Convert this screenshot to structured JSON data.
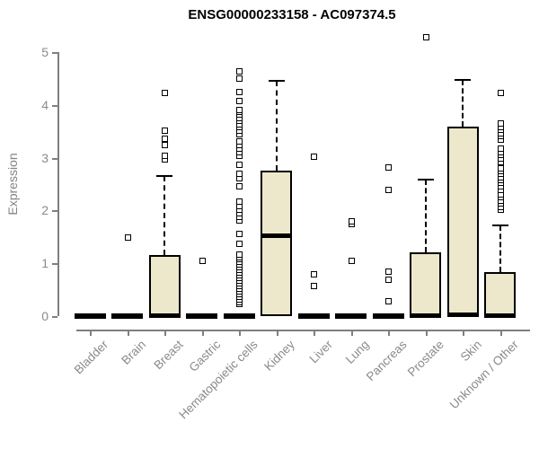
{
  "chart_data": {
    "type": "boxplot",
    "title": "ENSG00000233158 - AC097374.5",
    "ylabel": "Expression",
    "xlabel": "",
    "ylim": [
      0,
      5
    ],
    "yticks": [
      0,
      1,
      2,
      3,
      4,
      5
    ],
    "grid": false,
    "legend": "none",
    "box_fill_color": "#EDE8CC",
    "box_line_color": "#000000",
    "axis_color": "#7f7f7f",
    "label_color": "#8a8a8a",
    "categories": [
      {
        "label": "Bladder",
        "q1": 0,
        "median": 0,
        "q3": 0,
        "whisker_low": 0,
        "whisker_high": 0,
        "outliers": []
      },
      {
        "label": "Brain",
        "q1": 0,
        "median": 0,
        "q3": 0,
        "whisker_low": 0,
        "whisker_high": 0,
        "outliers": [
          1.5
        ]
      },
      {
        "label": "Breast",
        "q1": 0,
        "median": 0.02,
        "q3": 1.15,
        "whisker_low": 0,
        "whisker_high": 2.65,
        "outliers": [
          2.98,
          3.05,
          3.24,
          3.37,
          3.52,
          4.24
        ]
      },
      {
        "label": "Gastric",
        "q1": 0,
        "median": 0,
        "q3": 0,
        "whisker_low": 0,
        "whisker_high": 0,
        "outliers": [
          1.05
        ]
      },
      {
        "label": "Hematopoietic cells",
        "q1": 0,
        "median": 0,
        "q3": 0,
        "whisker_low": 0,
        "whisker_high": 0,
        "outliers": [
          0.23,
          0.28,
          0.33,
          0.38,
          0.43,
          0.48,
          0.53,
          0.58,
          0.63,
          0.68,
          0.73,
          0.78,
          0.83,
          0.88,
          0.93,
          0.98,
          1.03,
          1.08,
          1.13,
          1.18,
          1.37,
          1.56,
          1.82,
          1.89,
          1.96,
          2.03,
          2.1,
          2.17,
          2.47,
          2.62,
          2.7,
          2.87,
          3.04,
          3.11,
          3.18,
          3.25,
          3.32,
          3.46,
          3.52,
          3.58,
          3.64,
          3.7,
          3.76,
          3.82,
          3.88,
          3.92,
          4.09,
          4.26,
          4.51,
          4.65
        ]
      },
      {
        "label": "Kidney",
        "q1": 0,
        "median": 1.53,
        "q3": 2.75,
        "whisker_low": 0,
        "whisker_high": 4.45,
        "outliers": []
      },
      {
        "label": "Liver",
        "q1": 0,
        "median": 0,
        "q3": 0,
        "whisker_low": 0,
        "whisker_high": 0,
        "outliers": [
          0.57,
          0.8,
          3.02
        ]
      },
      {
        "label": "Lung",
        "q1": 0,
        "median": 0,
        "q3": 0,
        "whisker_low": 0,
        "whisker_high": 0,
        "outliers": [
          1.05,
          1.76,
          1.81
        ]
      },
      {
        "label": "Pancreas",
        "q1": 0,
        "median": 0,
        "q3": 0,
        "whisker_low": 0,
        "whisker_high": 0,
        "outliers": [
          0.29,
          0.7,
          0.85,
          2.4,
          2.82
        ]
      },
      {
        "label": "Prostate",
        "q1": 0,
        "median": 0.02,
        "q3": 1.2,
        "whisker_low": 0,
        "whisker_high": 2.59,
        "outliers": [
          5.29
        ]
      },
      {
        "label": "Skin",
        "q1": 0,
        "median": 0.03,
        "q3": 3.59,
        "whisker_low": 0,
        "whisker_high": 4.48,
        "outliers": []
      },
      {
        "label": "Unknown / Other",
        "q1": 0,
        "median": 0.02,
        "q3": 0.83,
        "whisker_low": 0,
        "whisker_high": 1.72,
        "outliers": [
          2.02,
          2.08,
          2.14,
          2.2,
          2.26,
          2.32,
          2.39,
          2.47,
          2.53,
          2.59,
          2.64,
          2.7,
          2.75,
          2.81,
          2.93,
          3.0,
          3.06,
          3.12,
          3.18,
          3.35,
          3.41,
          3.47,
          3.53,
          3.59,
          3.65,
          4.24
        ]
      }
    ]
  }
}
